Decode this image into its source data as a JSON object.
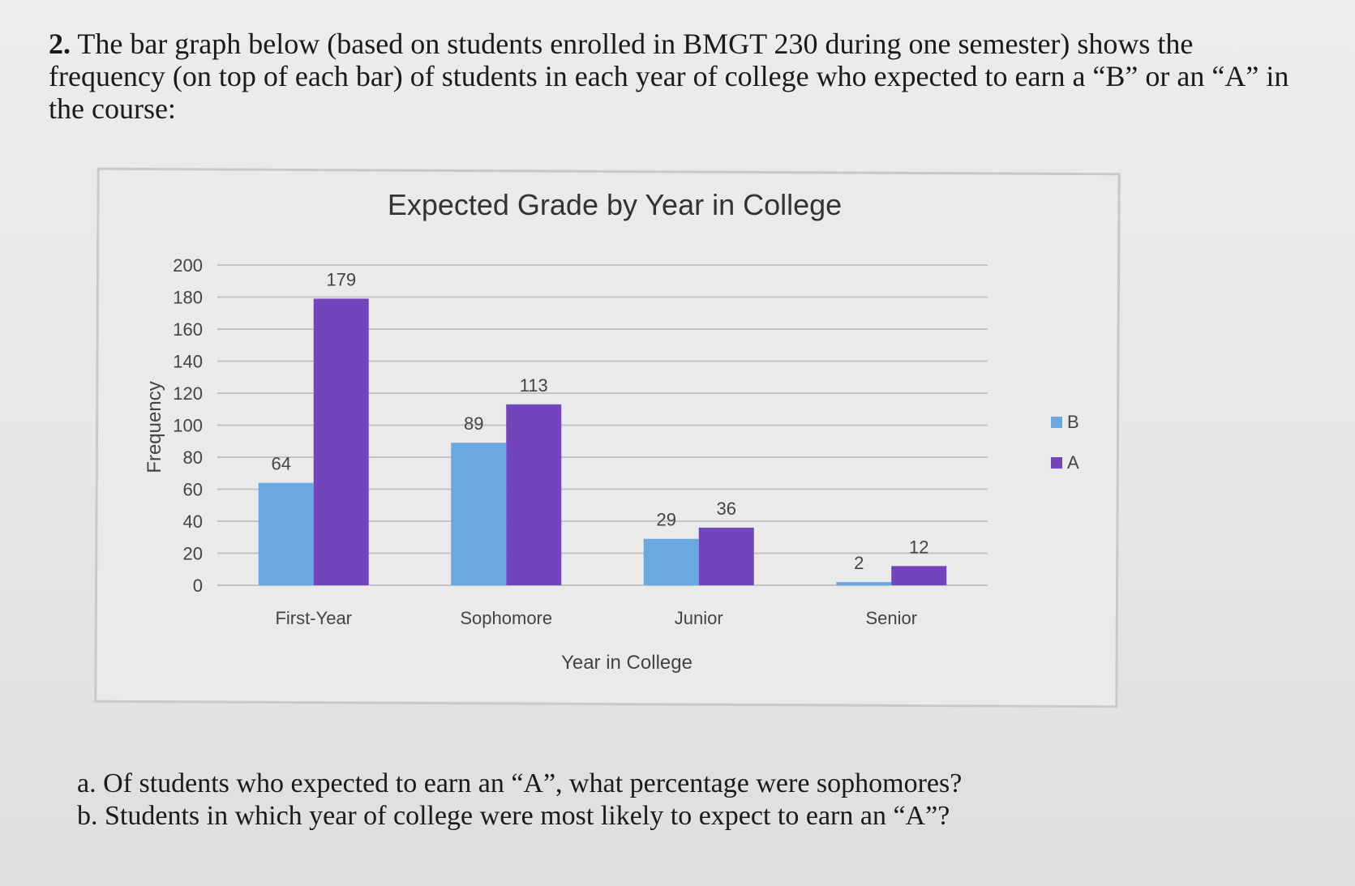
{
  "question": {
    "number": "2.",
    "text": "The bar graph below (based on students enrolled in BMGT 230 during one semester) shows the frequency (on top of each bar) of students in each year of college who expected to earn a “B” or an “A” in the course:"
  },
  "chart_data": {
    "type": "bar",
    "title": "Expected Grade by Year in College",
    "xlabel": "Year in College",
    "ylabel": "Frequency",
    "categories": [
      "First-Year",
      "Sophomore",
      "Junior",
      "Senior"
    ],
    "series": [
      {
        "name": "B",
        "values": [
          64,
          89,
          29,
          2
        ],
        "color": "#6aa9df"
      },
      {
        "name": "A",
        "values": [
          179,
          113,
          36,
          12
        ],
        "color": "#7245bd"
      }
    ],
    "ylim": [
      0,
      200
    ],
    "yticks": [
      0,
      20,
      40,
      60,
      80,
      100,
      120,
      140,
      160,
      180,
      200
    ],
    "grid": true,
    "legend_position": "right"
  },
  "sub_questions": [
    "a. Of students who expected to earn an “A”, what percentage were sophomores?",
    "b. Students in which year of college were most likely to expect to earn an “A”?"
  ]
}
